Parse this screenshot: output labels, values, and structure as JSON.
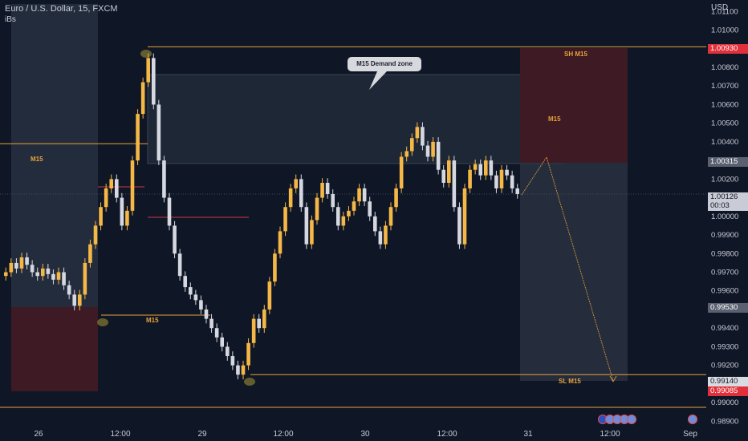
{
  "header": {
    "symbol_title": "Euro / U.S. Dollar, 15, FXCM",
    "indicator": "iBs",
    "currency": "USD"
  },
  "price_axis": {
    "ticks": [
      "1.01100",
      "1.01000",
      "1.00900",
      "1.00800",
      "1.00700",
      "1.00600",
      "1.00500",
      "1.00400",
      "1.00300",
      "1.00200",
      "1.00100",
      "1.00000",
      "0.99900",
      "0.99800",
      "0.99700",
      "0.99600",
      "0.99500",
      "0.99400",
      "0.99300",
      "0.99200",
      "0.99100",
      "0.99000",
      "0.98900"
    ],
    "tick_values": [
      1.011,
      1.01,
      1.009,
      1.008,
      1.007,
      1.006,
      1.005,
      1.004,
      1.003,
      1.002,
      1.001,
      1.0,
      0.999,
      0.998,
      0.997,
      0.996,
      0.995,
      0.994,
      0.993,
      0.992,
      0.991,
      0.99,
      0.989
    ],
    "labels": {
      "sh": "1.00930",
      "mid": "1.00315",
      "current": "1.00126",
      "countdown": "00:03",
      "low": "0.99530",
      "sl": "0.99140",
      "stop": "0.99085"
    },
    "colors": {
      "sh": "#e0303b",
      "mid": "#5a6070",
      "current": "#c9ccd6",
      "low": "#5a6070",
      "sl": "#c9ccd6",
      "stop": "#e0303b"
    }
  },
  "time_axis": {
    "labels": [
      "26",
      "12:00",
      "29",
      "12:00",
      "30",
      "12:00",
      "31",
      "12:00",
      "Sep"
    ]
  },
  "annotations": {
    "demand_zone": "M15 Demand zone",
    "sh": "SH M15",
    "m15_upper": "M15",
    "m15_lower": "M15",
    "m15_box": "M15",
    "sl": "SL M15"
  },
  "colors": {
    "background": "#0f1626",
    "bull": "#f5b746",
    "bear": "#d5d8e0",
    "accent_line": "#e8a23a",
    "red_zone": "#3d1a24",
    "gray_zone": "#2a3344"
  },
  "flags": [
    "eu-flag-icon",
    "us-flag-icon",
    "us-flag-icon",
    "us-flag-icon",
    "us-flag-icon"
  ],
  "chart_data": {
    "type": "candlestick",
    "series": [
      {
        "name": "",
        "close": [
          0.997,
          0.9975,
          0.9972,
          0.9978,
          0.9974,
          0.997,
          0.9968,
          0.9972,
          0.9969,
          0.9966,
          0.997,
          0.9963,
          0.9958,
          0.9952,
          0.9958,
          0.9975,
          0.9985,
          0.9995,
          1.0005,
          1.0015,
          1.002,
          1.001,
          0.9995,
          1.0003,
          1.003,
          1.0055,
          1.0072,
          1.0085,
          1.006,
          1.003,
          1.001,
          0.9995,
          0.998,
          0.9968,
          0.9962,
          0.9958,
          0.9955,
          0.995,
          0.9945,
          0.994,
          0.9935,
          0.993,
          0.9925,
          0.992,
          0.9915,
          0.992,
          0.9932,
          0.9945,
          0.994,
          0.995,
          0.9965,
          0.998,
          0.9992,
          1.0005,
          1.0015,
          1.002,
          1.0005,
          0.9985,
          0.9998,
          1.001,
          1.0018,
          1.0012,
          1.0005,
          0.9995,
          1.0,
          1.0003,
          1.0008,
          1.0015,
          1.0008,
          1.0,
          0.9992,
          0.9985,
          0.9995,
          1.0005,
          1.0015,
          1.0032,
          1.0035,
          1.0042,
          1.0048,
          1.0038,
          1.0032,
          1.004,
          1.0025,
          1.0018,
          1.003,
          1.0005,
          0.9985,
          1.0015,
          1.0025,
          1.0028,
          1.0022,
          1.003,
          1.0022,
          1.0015,
          1.0025,
          1.0022,
          1.0015,
          1.0012
        ],
        "high_low_note": "wick extremes approximate"
      }
    ],
    "ylim": [
      0.9888,
      1.0114
    ],
    "markers": {
      "swing_high": 1.0091,
      "swing_low": 0.9915,
      "demand_zone_top": 1.0079,
      "demand_zone_bottom": 1.0031,
      "m15_level": 1.0039,
      "m15_lower_level": 0.9947
    }
  }
}
